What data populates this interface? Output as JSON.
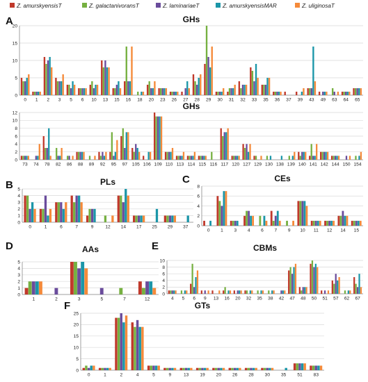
{
  "colors": {
    "series": [
      "#c0392b",
      "#76b041",
      "#6a4c9c",
      "#1b96a8",
      "#f58a3a"
    ],
    "grid": "#d9d9d9",
    "axis": "#888888"
  },
  "legend": [
    "Z. amurskyensisT",
    "Z. galactanivoransT",
    "Z. laminariaeT",
    "Z. amurskyensisMAR",
    "Z. uliginosaT"
  ],
  "chart_data": [
    {
      "id": "GHs-1",
      "panel": "A",
      "type": "bar",
      "title": "GHs",
      "ylim": [
        0,
        20
      ],
      "yticks": [
        0,
        5,
        10,
        15,
        20
      ],
      "categories": [
        "0",
        "1",
        "2",
        "3",
        "5",
        "6",
        "10",
        "13",
        "15",
        "16",
        "18",
        "20",
        "23",
        "26",
        "27",
        "28",
        "29",
        "30",
        "31",
        "32",
        "33",
        "35",
        "36",
        "37",
        "39",
        "43",
        "49",
        "63",
        "64",
        "65"
      ],
      "series": [
        {
          "name": "Z. amurskyensisT",
          "values": [
            5,
            1,
            11,
            5,
            3,
            2,
            3,
            10,
            2,
            4,
            0,
            3,
            2,
            1,
            1,
            6,
            9,
            1,
            1,
            4,
            8,
            3,
            1,
            1,
            1,
            2,
            1,
            0,
            1,
            2
          ]
        },
        {
          "name": "Z. galactanivoransT",
          "values": [
            4,
            1,
            9,
            4,
            3,
            2,
            4,
            8,
            2,
            14,
            1,
            4,
            2,
            1,
            0,
            4,
            20,
            1,
            2,
            2,
            7,
            3,
            1,
            0,
            0,
            2,
            0,
            2,
            1,
            2
          ]
        },
        {
          "name": "Z. laminariaeT",
          "values": [
            4,
            1,
            10,
            4,
            2,
            2,
            2,
            10,
            3,
            4,
            0,
            2,
            2,
            1,
            2,
            3,
            11,
            1,
            2,
            3,
            4,
            3,
            1,
            0,
            0,
            2,
            1,
            1,
            1,
            2
          ]
        },
        {
          "name": "Z. amurskyensisMAR",
          "values": [
            5,
            1,
            11,
            4,
            4,
            2,
            3,
            8,
            4,
            4,
            1,
            2,
            2,
            1,
            4,
            5,
            8,
            1,
            2,
            3,
            9,
            5,
            1,
            0,
            1,
            14,
            1,
            0,
            1,
            2
          ]
        },
        {
          "name": "Z. uliginosaT",
          "values": [
            6,
            1,
            8,
            6,
            3,
            2,
            3,
            8,
            2,
            14,
            1,
            4,
            2,
            1,
            2,
            6,
            14,
            2,
            3,
            3,
            5,
            5,
            1,
            0,
            2,
            4,
            1,
            1,
            1,
            2
          ]
        }
      ]
    },
    {
      "id": "GHs-2",
      "panel": "",
      "type": "bar",
      "title": "GHs",
      "ylim": [
        0,
        12
      ],
      "yticks": [
        0,
        2,
        4,
        6,
        8,
        10,
        12
      ],
      "categories": [
        "73",
        "74",
        "78",
        "82",
        "86",
        "88",
        "89",
        "92",
        "95",
        "97",
        "105",
        "106",
        "109",
        "110",
        "113",
        "114",
        "115",
        "116",
        "117",
        "120",
        "127",
        "129",
        "130",
        "138",
        "139",
        "140",
        "141",
        "142",
        "144",
        "150",
        "154"
      ],
      "series": [
        {
          "name": "Z. amurskyensisT",
          "values": [
            1,
            0,
            6,
            0,
            0,
            2,
            0,
            2,
            2,
            6,
            3,
            1,
            12,
            2,
            1,
            1,
            1,
            0,
            8,
            1,
            4,
            1,
            0,
            0,
            0,
            2,
            1,
            2,
            1,
            0,
            0
          ]
        },
        {
          "name": "Z. galactanivoransT",
          "values": [
            1,
            0,
            3,
            3,
            1,
            2,
            1,
            1,
            7,
            8,
            2,
            0,
            11,
            2,
            1,
            1,
            1,
            2,
            6,
            1,
            3,
            1,
            1,
            0,
            1,
            1,
            4,
            2,
            1,
            0,
            1
          ]
        },
        {
          "name": "Z. laminariaeT",
          "values": [
            1,
            1,
            3,
            1,
            1,
            2,
            0,
            2,
            1,
            3,
            4,
            0,
            11,
            2,
            1,
            1,
            1,
            0,
            7,
            1,
            4,
            0,
            0,
            0,
            0,
            2,
            1,
            2,
            1,
            1,
            0
          ]
        },
        {
          "name": "Z. amurskyensisMAR",
          "values": [
            1,
            1,
            8,
            1,
            0,
            2,
            0,
            1,
            2,
            7,
            3,
            2,
            11,
            2,
            1,
            1,
            1,
            0,
            7,
            1,
            2,
            0,
            1,
            1,
            1,
            2,
            1,
            2,
            1,
            0,
            1
          ]
        },
        {
          "name": "Z. uliginosaT",
          "values": [
            1,
            4,
            1,
            3,
            1,
            2,
            1,
            2,
            5,
            7,
            2,
            2,
            11,
            3,
            2,
            2,
            1,
            0,
            8,
            1,
            4,
            1,
            0,
            0,
            2,
            2,
            4,
            2,
            1,
            1,
            2
          ]
        }
      ]
    },
    {
      "id": "PLs",
      "panel": "B",
      "type": "bar",
      "title": "PLs",
      "ylim": [
        0,
        5
      ],
      "yticks": [
        0,
        1,
        2,
        3,
        4,
        5
      ],
      "categories": [
        "0",
        "1",
        "6",
        "7",
        "9",
        "12",
        "14",
        "17",
        "25",
        "29",
        "37"
      ],
      "series": [
        {
          "name": "Z. amurskyensisT",
          "values": [
            4,
            2,
            3,
            4,
            1,
            0,
            4,
            1,
            0,
            1,
            0
          ]
        },
        {
          "name": "Z. galactanivoransT",
          "values": [
            4,
            2,
            3,
            3,
            2,
            1,
            4,
            1,
            0,
            1,
            0
          ]
        },
        {
          "name": "Z. laminariaeT",
          "values": [
            2,
            4,
            3,
            4,
            2,
            0,
            3,
            1,
            0,
            1,
            0
          ]
        },
        {
          "name": "Z. amurskyensisMAR",
          "values": [
            3,
            1,
            2,
            4,
            2,
            0,
            5,
            1,
            2,
            1,
            1
          ]
        },
        {
          "name": "Z. uliginosaT",
          "values": [
            2,
            2,
            3,
            3,
            0,
            1,
            4,
            1,
            0,
            1,
            0
          ]
        }
      ]
    },
    {
      "id": "CEs",
      "panel": "C",
      "type": "bar",
      "title": "CEs",
      "ylim": [
        0,
        8
      ],
      "yticks": [
        0,
        2,
        4,
        6,
        8
      ],
      "categories": [
        "0",
        "1",
        "3",
        "4",
        "6",
        "7",
        "9",
        "10",
        "11",
        "12",
        "14",
        "15"
      ],
      "series": [
        {
          "name": "Z. amurskyensisT",
          "values": [
            1,
            6,
            1,
            2,
            0,
            3,
            0,
            5,
            1,
            1,
            2,
            1
          ]
        },
        {
          "name": "Z. galactanivoransT",
          "values": [
            0,
            5,
            1,
            3,
            2,
            1,
            1,
            5,
            1,
            1,
            2,
            1
          ]
        },
        {
          "name": "Z. laminariaeT",
          "values": [
            0,
            4,
            1,
            3,
            0,
            2,
            0,
            5,
            1,
            1,
            3,
            1
          ]
        },
        {
          "name": "Z. amurskyensisMAR",
          "values": [
            1,
            7,
            1,
            2,
            2,
            3,
            0,
            5,
            1,
            1,
            2,
            1
          ]
        },
        {
          "name": "Z. uliginosaT",
          "values": [
            0,
            7,
            0,
            2,
            1,
            1,
            1,
            4,
            1,
            1,
            2,
            1
          ]
        }
      ]
    },
    {
      "id": "AAs",
      "panel": "D",
      "type": "bar",
      "title": "AAs",
      "ylim": [
        0,
        5
      ],
      "yticks": [
        0,
        1,
        2,
        3,
        4,
        5
      ],
      "categories": [
        "1",
        "2",
        "3",
        "5",
        "7",
        "12"
      ],
      "series": [
        {
          "name": "Z. amurskyensisT",
          "values": [
            1,
            0,
            5,
            0,
            0,
            2
          ]
        },
        {
          "name": "Z. galactanivoransT",
          "values": [
            2,
            0,
            5,
            0,
            1,
            1
          ]
        },
        {
          "name": "Z. laminariaeT",
          "values": [
            2,
            1,
            4,
            1,
            0,
            2
          ]
        },
        {
          "name": "Z. amurskyensisMAR",
          "values": [
            2,
            0,
            5,
            0,
            0,
            2
          ]
        },
        {
          "name": "Z. uliginosaT",
          "values": [
            2,
            0,
            4,
            0,
            0,
            1
          ]
        }
      ]
    },
    {
      "id": "CBMs",
      "panel": "E",
      "type": "bar",
      "title": "CBMs",
      "ylim": [
        0,
        10
      ],
      "yticks": [
        0,
        2,
        4,
        6,
        8,
        10
      ],
      "categories": [
        "4",
        "5",
        "6",
        "9",
        "13",
        "16",
        "20",
        "32",
        "35",
        "38",
        "42",
        "47",
        "48",
        "50",
        "51",
        "57",
        "62",
        "67"
      ],
      "series": [
        {
          "name": "Z. amurskyensisT",
          "values": [
            1,
            0,
            3,
            1,
            1,
            1,
            1,
            1,
            0,
            0,
            0,
            7,
            2,
            9,
            1,
            4,
            0,
            5
          ]
        },
        {
          "name": "Z. galactanivoransT",
          "values": [
            1,
            1,
            9,
            0,
            0,
            2,
            0,
            1,
            1,
            1,
            0,
            8,
            1,
            10,
            0,
            3,
            1,
            3
          ]
        },
        {
          "name": "Z. laminariaeT",
          "values": [
            1,
            0,
            2,
            1,
            0,
            0,
            1,
            0,
            0,
            0,
            1,
            6,
            2,
            8,
            1,
            6,
            0,
            2
          ]
        },
        {
          "name": "Z. amurskyensisMAR",
          "values": [
            1,
            1,
            5,
            0,
            0,
            1,
            1,
            1,
            1,
            1,
            1,
            8,
            2,
            9,
            0,
            4,
            1,
            6
          ]
        },
        {
          "name": "Z. uliginosaT",
          "values": [
            1,
            1,
            7,
            1,
            1,
            1,
            1,
            1,
            1,
            1,
            1,
            9,
            2,
            8,
            1,
            5,
            1,
            2
          ]
        }
      ]
    },
    {
      "id": "GTs",
      "panel": "F",
      "type": "bar",
      "title": "GTs",
      "ylim": [
        0,
        25
      ],
      "yticks": [
        0,
        5,
        10,
        15,
        20,
        25
      ],
      "categories": [
        "0",
        "1",
        "2",
        "4",
        "5",
        "9",
        "13",
        "19",
        "20",
        "26",
        "28",
        "30",
        "35",
        "51",
        "83"
      ],
      "series": [
        {
          "name": "Z. amurskyensisT",
          "values": [
            1,
            1,
            23,
            21,
            2,
            1,
            1,
            1,
            1,
            1,
            1,
            1,
            0,
            3,
            2
          ]
        },
        {
          "name": "Z. galactanivoransT",
          "values": [
            2,
            1,
            23,
            19,
            2,
            1,
            1,
            1,
            1,
            1,
            1,
            1,
            0,
            3,
            2
          ]
        },
        {
          "name": "Z. laminariaeT",
          "values": [
            1,
            1,
            25,
            22,
            2,
            1,
            1,
            1,
            1,
            1,
            1,
            1,
            0,
            3,
            2
          ]
        },
        {
          "name": "Z. amurskyensisMAR",
          "values": [
            2,
            1,
            21,
            19,
            2,
            1,
            1,
            1,
            1,
            1,
            1,
            1,
            1,
            3,
            2
          ]
        },
        {
          "name": "Z. uliginosaT",
          "values": [
            2,
            1,
            24,
            19,
            2,
            1,
            1,
            1,
            1,
            1,
            1,
            1,
            0,
            3,
            2
          ]
        }
      ]
    }
  ]
}
